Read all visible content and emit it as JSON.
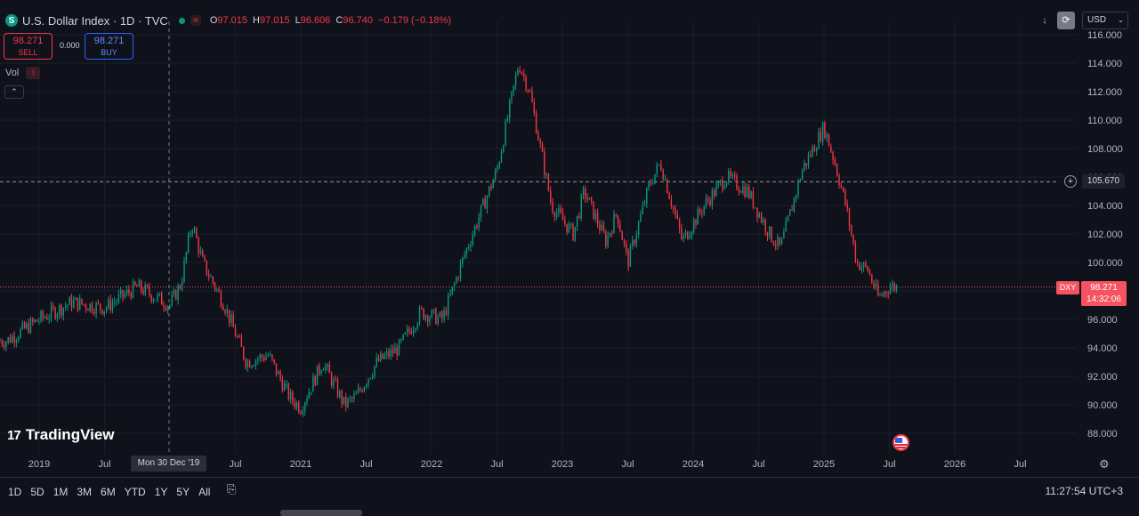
{
  "header": {
    "symbol_icon": "S",
    "title": "U.S. Dollar Index · 1D · TVC",
    "status_dot_color": "#089981",
    "wave_icon": "≈",
    "ohlc": {
      "o_label": "O",
      "o_value": "97.015",
      "h_label": "H",
      "h_value": "97.015",
      "l_label": "L",
      "l_value": "96.606",
      "c_label": "C",
      "c_value": "96.740",
      "change": "−0.179 (−0.18%)"
    }
  },
  "trade": {
    "sell_price": "98.271",
    "sell_label": "SELL",
    "spread": "0.000",
    "buy_price": "98.271",
    "buy_label": "BUY"
  },
  "volume": {
    "label": "Vol",
    "error_icon": "!"
  },
  "collapse_icon": "⌃",
  "toolbar": {
    "download_icon": "↓",
    "sync_icon": "⟳",
    "currency": "USD",
    "currency_chevron": "⌄"
  },
  "price_line": {
    "value": "105.670",
    "plus_icon": "+"
  },
  "last_price": {
    "symbol": "DXY",
    "value": "98.271",
    "countdown": "14:32:06",
    "color": "#f7525f"
  },
  "crosshair": {
    "date_label": "Mon 30 Dec '19"
  },
  "brand": {
    "mark": "17",
    "name": "TradingView"
  },
  "ranges": [
    "1D",
    "5D",
    "1M",
    "3M",
    "6M",
    "YTD",
    "1Y",
    "5Y",
    "All"
  ],
  "compare_icon": "⎘",
  "clock": "11:27:54 UTC+3",
  "settings_icon": "⚙",
  "chart_data": {
    "type": "candlestick",
    "y_ticks": [
      "88.000",
      "90.000",
      "92.000",
      "94.000",
      "96.000",
      "98.000",
      "100.000",
      "102.000",
      "104.000",
      "106.000",
      "108.000",
      "110.000",
      "112.000",
      "114.000",
      "116.000"
    ],
    "x_ticks": [
      "2019",
      "Jul",
      "Jul",
      "2021",
      "Jul",
      "2022",
      "Jul",
      "2023",
      "Jul",
      "2024",
      "Jul",
      "2025",
      "Jul",
      "2026",
      "Jul"
    ],
    "ylim": [
      87,
      116.5
    ],
    "up_color": "#089981",
    "down_color": "#f23645",
    "series": [
      {
        "x": "2018-10",
        "y": 94.5
      },
      {
        "x": "2019-01",
        "y": 96.0
      },
      {
        "x": "2019-04",
        "y": 97.2
      },
      {
        "x": "2019-07",
        "y": 96.8
      },
      {
        "x": "2019-10",
        "y": 98.3
      },
      {
        "x": "2020-01",
        "y": 97.0
      },
      {
        "x": "2020-02",
        "y": 98.5
      },
      {
        "x": "2020-03",
        "y": 102.8
      },
      {
        "x": "2020-04",
        "y": 100.0
      },
      {
        "x": "2020-06",
        "y": 97.0
      },
      {
        "x": "2020-08",
        "y": 93.0
      },
      {
        "x": "2020-10",
        "y": 93.5
      },
      {
        "x": "2020-12",
        "y": 90.5
      },
      {
        "x": "2021-01",
        "y": 89.8
      },
      {
        "x": "2021-03",
        "y": 93.0
      },
      {
        "x": "2021-05",
        "y": 90.0
      },
      {
        "x": "2021-06",
        "y": 90.5
      },
      {
        "x": "2021-08",
        "y": 93.0
      },
      {
        "x": "2021-10",
        "y": 94.0
      },
      {
        "x": "2021-12",
        "y": 96.5
      },
      {
        "x": "2022-02",
        "y": 96.0
      },
      {
        "x": "2022-04",
        "y": 100.5
      },
      {
        "x": "2022-06",
        "y": 104.5
      },
      {
        "x": "2022-07",
        "y": 106.5
      },
      {
        "x": "2022-09",
        "y": 114.0
      },
      {
        "x": "2022-10",
        "y": 112.0
      },
      {
        "x": "2022-12",
        "y": 104.0
      },
      {
        "x": "2023-02",
        "y": 102.0
      },
      {
        "x": "2023-03",
        "y": 105.0
      },
      {
        "x": "2023-05",
        "y": 101.5
      },
      {
        "x": "2023-06",
        "y": 103.5
      },
      {
        "x": "2023-07",
        "y": 100.0
      },
      {
        "x": "2023-09",
        "y": 105.5
      },
      {
        "x": "2023-10",
        "y": 107.0
      },
      {
        "x": "2023-12",
        "y": 101.5
      },
      {
        "x": "2024-02",
        "y": 104.0
      },
      {
        "x": "2024-04",
        "y": 106.0
      },
      {
        "x": "2024-06",
        "y": 105.0
      },
      {
        "x": "2024-08",
        "y": 102.0
      },
      {
        "x": "2024-09",
        "y": 101.0
      },
      {
        "x": "2024-11",
        "y": 106.5
      },
      {
        "x": "2025-01",
        "y": 109.5
      },
      {
        "x": "2025-02",
        "y": 107.0
      },
      {
        "x": "2025-03",
        "y": 104.0
      },
      {
        "x": "2025-04",
        "y": 100.0
      },
      {
        "x": "2025-05",
        "y": 99.5
      },
      {
        "x": "2025-06",
        "y": 97.5
      },
      {
        "x": "2025-07",
        "y": 98.3
      }
    ]
  }
}
